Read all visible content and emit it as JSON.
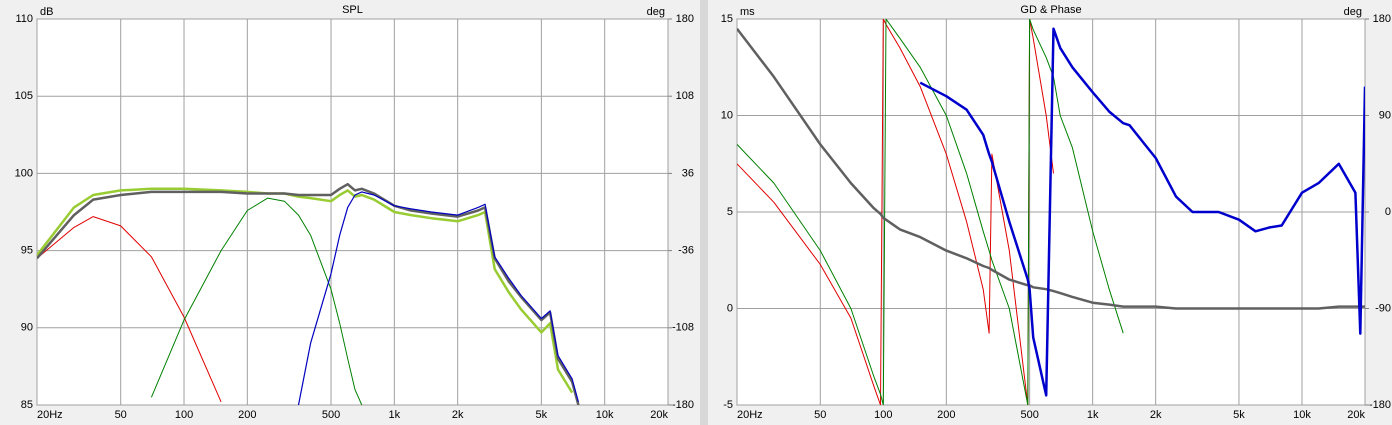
{
  "chart_data": [
    {
      "type": "line",
      "title": "SPL",
      "ylabel": "dB",
      "y2label": "deg",
      "xscale": "log",
      "grid": true,
      "xlim": [
        20,
        20000
      ],
      "xticks": [
        {
          "value": 20,
          "label": "20Hz"
        },
        50,
        100,
        200,
        500,
        {
          "value": 1000,
          "label": "1k"
        },
        {
          "value": 2000,
          "label": "2k"
        },
        {
          "value": 5000,
          "label": "5k"
        },
        {
          "value": 10000,
          "label": "10k"
        },
        {
          "value": 20000,
          "label": "20k"
        }
      ],
      "ylim": [
        85,
        110
      ],
      "yticks": [
        85,
        90,
        95,
        100,
        105,
        110
      ],
      "y2lim": [
        -180,
        180
      ],
      "y2ticks": [
        -180,
        -108,
        -36,
        36,
        108,
        180
      ],
      "x": [
        20,
        30,
        37,
        50,
        70,
        100,
        150,
        200,
        250,
        300,
        350,
        400,
        500,
        550,
        600,
        650,
        700,
        800,
        1000,
        1200,
        1500,
        2000,
        2500,
        2700,
        3000,
        3500,
        4000,
        5000,
        5500,
        6000,
        7000,
        7500
      ],
      "series": [
        {
          "color": "#e00000",
          "values": [
            94.5,
            96.5,
            97.2,
            96.6,
            94.6,
            90.7,
            85.2,
            null,
            null,
            null,
            null,
            null,
            null,
            null,
            null,
            null,
            null,
            null,
            null,
            null,
            null,
            null,
            null,
            null,
            null,
            null,
            null,
            null,
            null,
            null,
            null,
            null
          ]
        },
        {
          "color": "#008000",
          "values": [
            null,
            null,
            null,
            null,
            85.5,
            90.5,
            95.0,
            97.6,
            98.4,
            98.2,
            97.3,
            96.0,
            92.5,
            90.3,
            88.0,
            86.0,
            85.0,
            null,
            null,
            null,
            null,
            null,
            null,
            null,
            null,
            null,
            null,
            null,
            null,
            null,
            null,
            null
          ]
        },
        {
          "color": "#99cc33",
          "values": [
            94.7,
            97.8,
            98.6,
            98.9,
            99.0,
            99.0,
            98.9,
            98.8,
            98.7,
            98.7,
            98.5,
            98.4,
            98.2,
            98.6,
            98.9,
            98.5,
            98.6,
            98.3,
            97.5,
            97.3,
            97.1,
            96.9,
            97.3,
            97.5,
            93.8,
            92.3,
            91.2,
            89.7,
            90.3,
            87.3,
            85.8,
            null
          ]
        },
        {
          "color": "#606060",
          "values": [
            94.5,
            97.3,
            98.3,
            98.6,
            98.8,
            98.8,
            98.8,
            98.7,
            98.7,
            98.7,
            98.6,
            98.6,
            98.6,
            99.0,
            99.3,
            98.9,
            99.0,
            98.7,
            97.9,
            97.6,
            97.4,
            97.2,
            97.6,
            97.8,
            94.5,
            93.0,
            92.0,
            90.5,
            91.0,
            88.0,
            86.5,
            85.0
          ]
        },
        {
          "color": "#0000c0",
          "values": [
            null,
            null,
            null,
            null,
            null,
            null,
            null,
            null,
            null,
            null,
            85.0,
            89.0,
            93.5,
            96.0,
            97.8,
            98.6,
            98.8,
            98.6,
            97.9,
            97.7,
            97.5,
            97.3,
            97.8,
            98.0,
            94.6,
            93.2,
            92.1,
            90.6,
            91.1,
            88.2,
            86.7,
            85.2
          ]
        }
      ]
    },
    {
      "type": "line",
      "title": "GD & Phase",
      "ylabel": "ms",
      "y2label": "deg",
      "xscale": "log",
      "grid": true,
      "xlim": [
        20,
        20000
      ],
      "xticks": [
        {
          "value": 20,
          "label": "20Hz"
        },
        50,
        100,
        200,
        500,
        {
          "value": 1000,
          "label": "1k"
        },
        {
          "value": 2000,
          "label": "2k"
        },
        {
          "value": 5000,
          "label": "5k"
        },
        {
          "value": 10000,
          "label": "10k"
        },
        {
          "value": 20000,
          "label": "20k"
        }
      ],
      "ylim": [
        -5,
        15
      ],
      "yticks": [
        -5,
        0,
        5,
        10,
        15
      ],
      "y2lim": [
        -180,
        180
      ],
      "y2ticks": [
        -180,
        -90,
        0,
        90,
        180
      ],
      "x": [
        20,
        30,
        50,
        70,
        90,
        97,
        100,
        103,
        120,
        150,
        200,
        250,
        300,
        320,
        330,
        400,
        490,
        500,
        520,
        600,
        650,
        700,
        800,
        1000,
        1200,
        1400,
        1500,
        2000,
        2500,
        3000,
        4000,
        5000,
        6000,
        7000,
        8000,
        10000,
        12000,
        15000,
        18000,
        19000,
        20000
      ],
      "series": [
        {
          "color": "#e00000",
          "axis": "y2",
          "values": [
            45,
            9,
            -49,
            -99,
            -162,
            -180,
            180,
            175,
            153,
            117,
            54,
            -9,
            -72,
            -113,
            54,
            -36,
            -180,
            180,
            162,
            90,
            36,
            null,
            null,
            null,
            null,
            null,
            null,
            null,
            null,
            null,
            null,
            null,
            null,
            null,
            null,
            null,
            null,
            null,
            null,
            null,
            null
          ]
        },
        {
          "color": "#008000",
          "axis": "y2",
          "values": [
            63,
            27,
            -36,
            -90,
            -153,
            -170,
            -180,
            180,
            162,
            135,
            90,
            36,
            -18,
            -36,
            -45,
            -90,
            -180,
            180,
            170,
            144,
            126,
            90,
            60,
            -18,
            -72,
            -113,
            null,
            null,
            null,
            null,
            null,
            null,
            null,
            null,
            null,
            null,
            null,
            null,
            null,
            null,
            null
          ]
        },
        {
          "color": "#606060",
          "values": [
            14.5,
            12,
            8.5,
            6.5,
            5.2,
            4.9,
            4.7,
            4.6,
            4.1,
            3.7,
            3,
            2.6,
            2.2,
            2.1,
            2,
            1.5,
            1.2,
            1.2,
            1.1,
            1,
            0.9,
            0.8,
            0.6,
            0.3,
            0.2,
            0.1,
            0.1,
            0.1,
            0,
            0,
            0,
            0,
            0,
            0,
            0,
            0,
            0,
            0.1,
            0.1,
            0.1,
            0.1
          ]
        },
        {
          "color": "#0000cc",
          "values": [
            null,
            null,
            null,
            null,
            null,
            null,
            null,
            null,
            null,
            11.7,
            11,
            10.3,
            9,
            8,
            7.6,
            4.5,
            1.5,
            1,
            -1.5,
            -4.5,
            14.5,
            13.5,
            12.5,
            11.2,
            10.2,
            9.6,
            9.5,
            7.8,
            5.8,
            5,
            5,
            4.6,
            4,
            4.2,
            4.3,
            6,
            6.5,
            7.5,
            6,
            -1.3,
            11.5
          ]
        }
      ]
    }
  ]
}
